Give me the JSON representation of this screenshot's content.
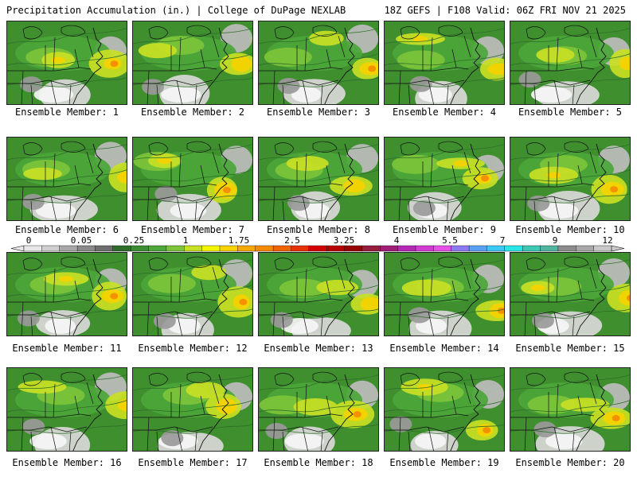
{
  "header": {
    "title_left": "Precipitation Accumulation (in.) | College of DuPage NEXLAB",
    "title_right": "18Z GEFS | F108 Valid: 06Z FRI NOV 21 2025"
  },
  "panels": [
    {
      "label": "Ensemble Member: 1"
    },
    {
      "label": "Ensemble Member: 2"
    },
    {
      "label": "Ensemble Member: 3"
    },
    {
      "label": "Ensemble Member: 4"
    },
    {
      "label": "Ensemble Member: 5"
    },
    {
      "label": "Ensemble Member: 6"
    },
    {
      "label": "Ensemble Member: 7"
    },
    {
      "label": "Ensemble Member: 8"
    },
    {
      "label": "Ensemble Member: 9"
    },
    {
      "label": "Ensemble Member: 10"
    },
    {
      "label": "Ensemble Member: 11"
    },
    {
      "label": "Ensemble Member: 12"
    },
    {
      "label": "Ensemble Member: 13"
    },
    {
      "label": "Ensemble Member: 14"
    },
    {
      "label": "Ensemble Member: 15"
    },
    {
      "label": "Ensemble Member: 16"
    },
    {
      "label": "Ensemble Member: 17"
    },
    {
      "label": "Ensemble Member: 18"
    },
    {
      "label": "Ensemble Member: 19"
    },
    {
      "label": "Ensemble Member: 20"
    }
  ],
  "colorbar": {
    "tick_labels": [
      "0",
      "0.05",
      "0.25",
      "1",
      "1.75",
      "2.5",
      "3.25",
      "4",
      "5.5",
      "7",
      "9",
      "12"
    ],
    "colors": [
      "#e8e8e8",
      "#cfcfcf",
      "#a8a8a8",
      "#8a8a8a",
      "#6e6e6e",
      "#2e6e2a",
      "#3c8c32",
      "#4ca63a",
      "#7cc43a",
      "#c8e024",
      "#f5f500",
      "#f5d200",
      "#f5a800",
      "#f58a00",
      "#f06400",
      "#e63200",
      "#d20000",
      "#b40000",
      "#960000",
      "#961e3c",
      "#a01e78",
      "#b428b4",
      "#d23cd2",
      "#e650e6",
      "#8c78f0",
      "#5aa0f5",
      "#3cc8f5",
      "#28e6e6",
      "#3cc8b4",
      "#50b4a0",
      "#8c8c8c",
      "#a8a8a8",
      "#c8c8c8"
    ]
  }
}
